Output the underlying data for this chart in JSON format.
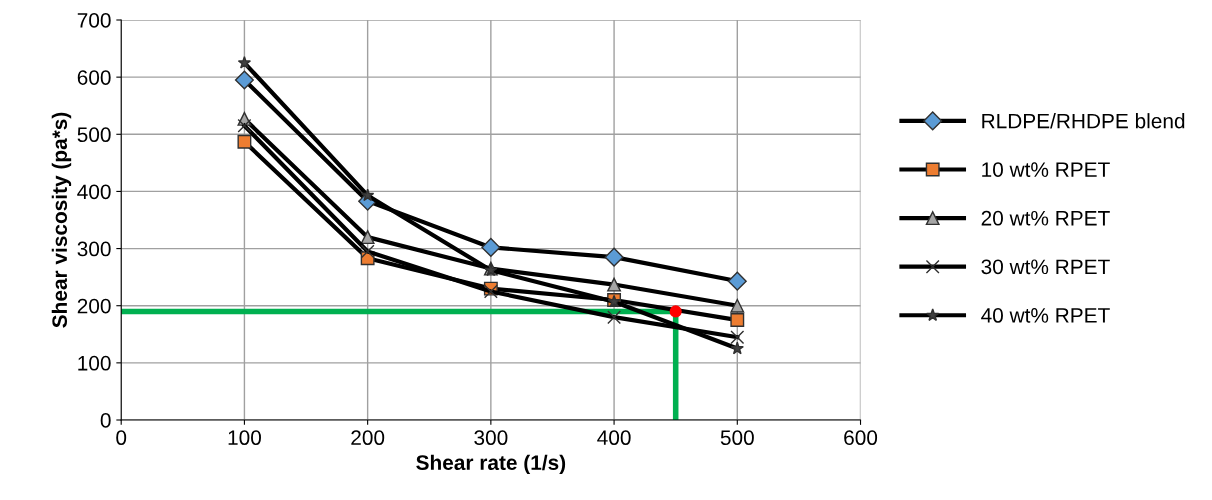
{
  "chart_data": {
    "type": "line",
    "xlabel": "Shear rate (1/s)",
    "ylabel": "Shear viscosity (pa*s)",
    "x": [
      100,
      200,
      300,
      400,
      500
    ],
    "series": [
      {
        "name": "RLDPE/RHDPE blend",
        "color": "#5b9bd5",
        "marker": "diamond",
        "values": [
          595,
          383,
          302,
          285,
          243
        ]
      },
      {
        "name": "10 wt% RPET",
        "color": "#ed7d31",
        "marker": "square",
        "values": [
          487,
          283,
          230,
          210,
          175
        ]
      },
      {
        "name": "20 wt% RPET",
        "color": "#a5a5a5",
        "marker": "triangle",
        "values": [
          527,
          320,
          265,
          237,
          200
        ]
      },
      {
        "name": "30 wt% RPET",
        "color": "#404040",
        "marker": "cross",
        "values": [
          515,
          295,
          225,
          180,
          145
        ]
      },
      {
        "name": "40 wt% RPET",
        "color": "#404040",
        "marker": "star",
        "values": [
          625,
          393,
          262,
          207,
          125
        ]
      },
      {
        "type": "scatter",
        "color": "#ff0000",
        "marker": "circle",
        "x": [
          450
        ],
        "values": [
          190
        ]
      }
    ],
    "xlim": [
      0,
      600
    ],
    "xticks": [
      0,
      100,
      200,
      300,
      400,
      500,
      600
    ],
    "ylim": [
      0,
      700
    ],
    "yticks": [
      0,
      100,
      200,
      300,
      400,
      500,
      600,
      700
    ],
    "ref_lines": [
      {
        "axis": "y",
        "value": 190,
        "color": "#00b050"
      },
      {
        "axis": "x",
        "value": 450,
        "color": "#00b050"
      }
    ],
    "grid": true,
    "legend": "right"
  }
}
